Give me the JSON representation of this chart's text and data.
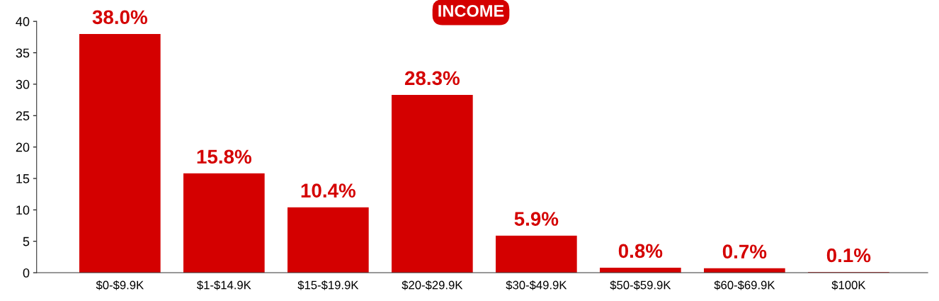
{
  "chart_data": {
    "type": "bar",
    "title": "INCOME",
    "categories": [
      "$0-$9.9K",
      "$1-$14.9K",
      "$15-$19.9K",
      "$20-$29.9K",
      "$30-$49.9K",
      "$50-$59.9K",
      "$60-$69.9K",
      "$100K"
    ],
    "values": [
      38.0,
      15.8,
      10.4,
      28.3,
      5.9,
      0.8,
      0.7,
      0.1
    ],
    "value_labels": [
      "38.0%",
      "15.8%",
      "10.4%",
      "28.3%",
      "5.9%",
      "0.8%",
      "0.7%",
      "0.1%"
    ],
    "color": "#d40000",
    "ylim": [
      0,
      40
    ],
    "yticks": [
      0,
      5,
      10,
      15,
      20,
      25,
      30,
      35,
      40
    ],
    "grid": false,
    "legend": false
  }
}
